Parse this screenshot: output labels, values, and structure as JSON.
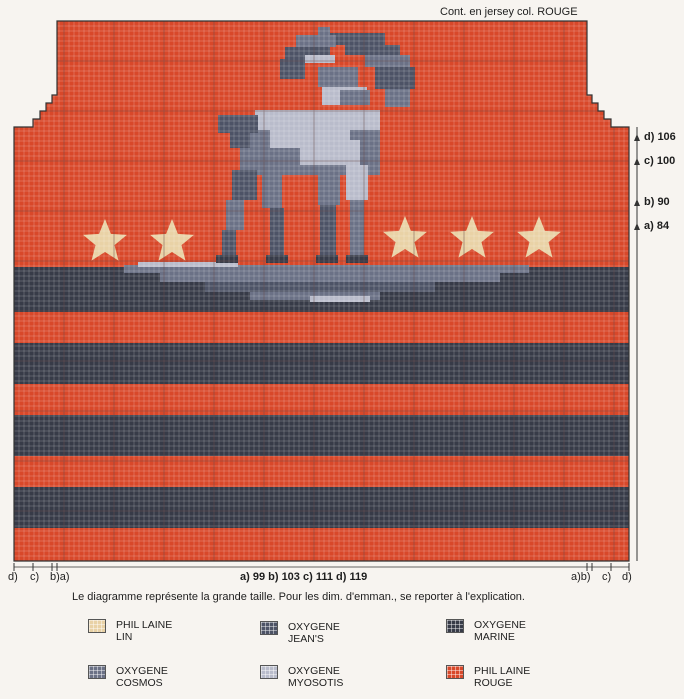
{
  "header": {
    "note": "Cont. en jersey col. ROUGE"
  },
  "right_marks": [
    {
      "label": "d) 106"
    },
    {
      "label": "c) 100"
    },
    {
      "label": "b) 90"
    },
    {
      "label": "a) 84"
    }
  ],
  "bottom_marks": {
    "left": [
      "d)",
      "c)",
      "b)a)"
    ],
    "center": "a) 99  b) 103  c) 111  d) 119",
    "right": [
      "a)b)",
      "c)",
      "d)"
    ]
  },
  "caption": "Le diagramme représente la grande taille. Pour les dim. d'emman., se reporter à l'explication.",
  "legend": [
    {
      "line1": "PHIL LAINE",
      "line2": "LIN",
      "color": "#e9d2a6"
    },
    {
      "line1": "OXYGENE",
      "line2": "JEAN'S",
      "color": "#4d5366"
    },
    {
      "line1": "OXYGENE",
      "line2": "MARINE",
      "color": "#373b48"
    },
    {
      "line1": "OXYGENE",
      "line2": "COSMOS",
      "color": "#6b7186"
    },
    {
      "line1": "OXYGENE",
      "line2": "MYOSOTIS",
      "color": "#b9bccb"
    },
    {
      "line1": "PHIL LAINE",
      "line2": "ROUGE",
      "color": "#d8482a"
    }
  ],
  "colors": {
    "rouge": "#d8482a",
    "marine": "#373b48",
    "jeans": "#4d5366",
    "cosmos": "#6b7186",
    "myosotis": "#b9bccb",
    "lin": "#e9d2a6"
  }
}
